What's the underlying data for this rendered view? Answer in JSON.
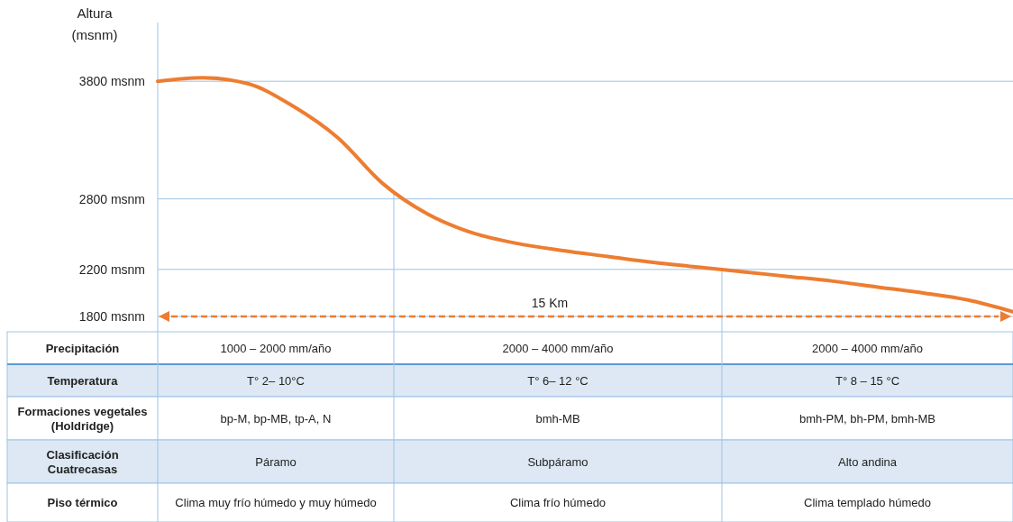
{
  "chart_data": {
    "type": "line",
    "ylabel": "Altura (msnm)",
    "categories": [
      null,
      null,
      null,
      null,
      null,
      null,
      null,
      null,
      null,
      null,
      null,
      null,
      null,
      null,
      null,
      null,
      null,
      null,
      null,
      null
    ],
    "series": [
      {
        "color": "#ed7d31",
        "values": [
          3800,
          3830,
          3780,
          3590,
          3320,
          2930,
          2670,
          2510,
          2420,
          2360,
          2310,
          2260,
          2220,
          2180,
          2140,
          2100,
          2050,
          2000,
          1940,
          1840
        ]
      }
    ],
    "ylim": [
      1800,
      4300
    ],
    "yticks": [
      {
        "value": 1800,
        "label": "1800 msnm"
      },
      {
        "value": 2200,
        "label": "2200 msnm"
      },
      {
        "value": 2800,
        "label": "2800 msnm"
      },
      {
        "value": 3800,
        "label": "3800 msnm"
      }
    ],
    "tick_labels": "y",
    "grid": "y",
    "marker": "none",
    "line_style": "solid",
    "annotations": [
      "15 Km",
      "Precipitación",
      "1000 – 2000 mm/año",
      "2000 – 4000 mm/año",
      "2000 – 4000 mm/año",
      "Temperatura",
      "T° 2– 10°C",
      "T° 6– 12 °C",
      "T° 8 – 15 °C",
      "Formaciones vegetales (Holdridge)",
      "bp-M, bp-MB, tp-A, N",
      "bmh-MB",
      "bmh-PM, bh-PM, bmh-MB",
      "Clasificación Cuatrecasas",
      "Páramo",
      "Subpáramo",
      "Alto andina",
      "Piso térmico",
      "Clima muy frío húmedo y muy húmedo",
      "Clima frío húmedo",
      "Clima templado húmedo"
    ]
  }
}
